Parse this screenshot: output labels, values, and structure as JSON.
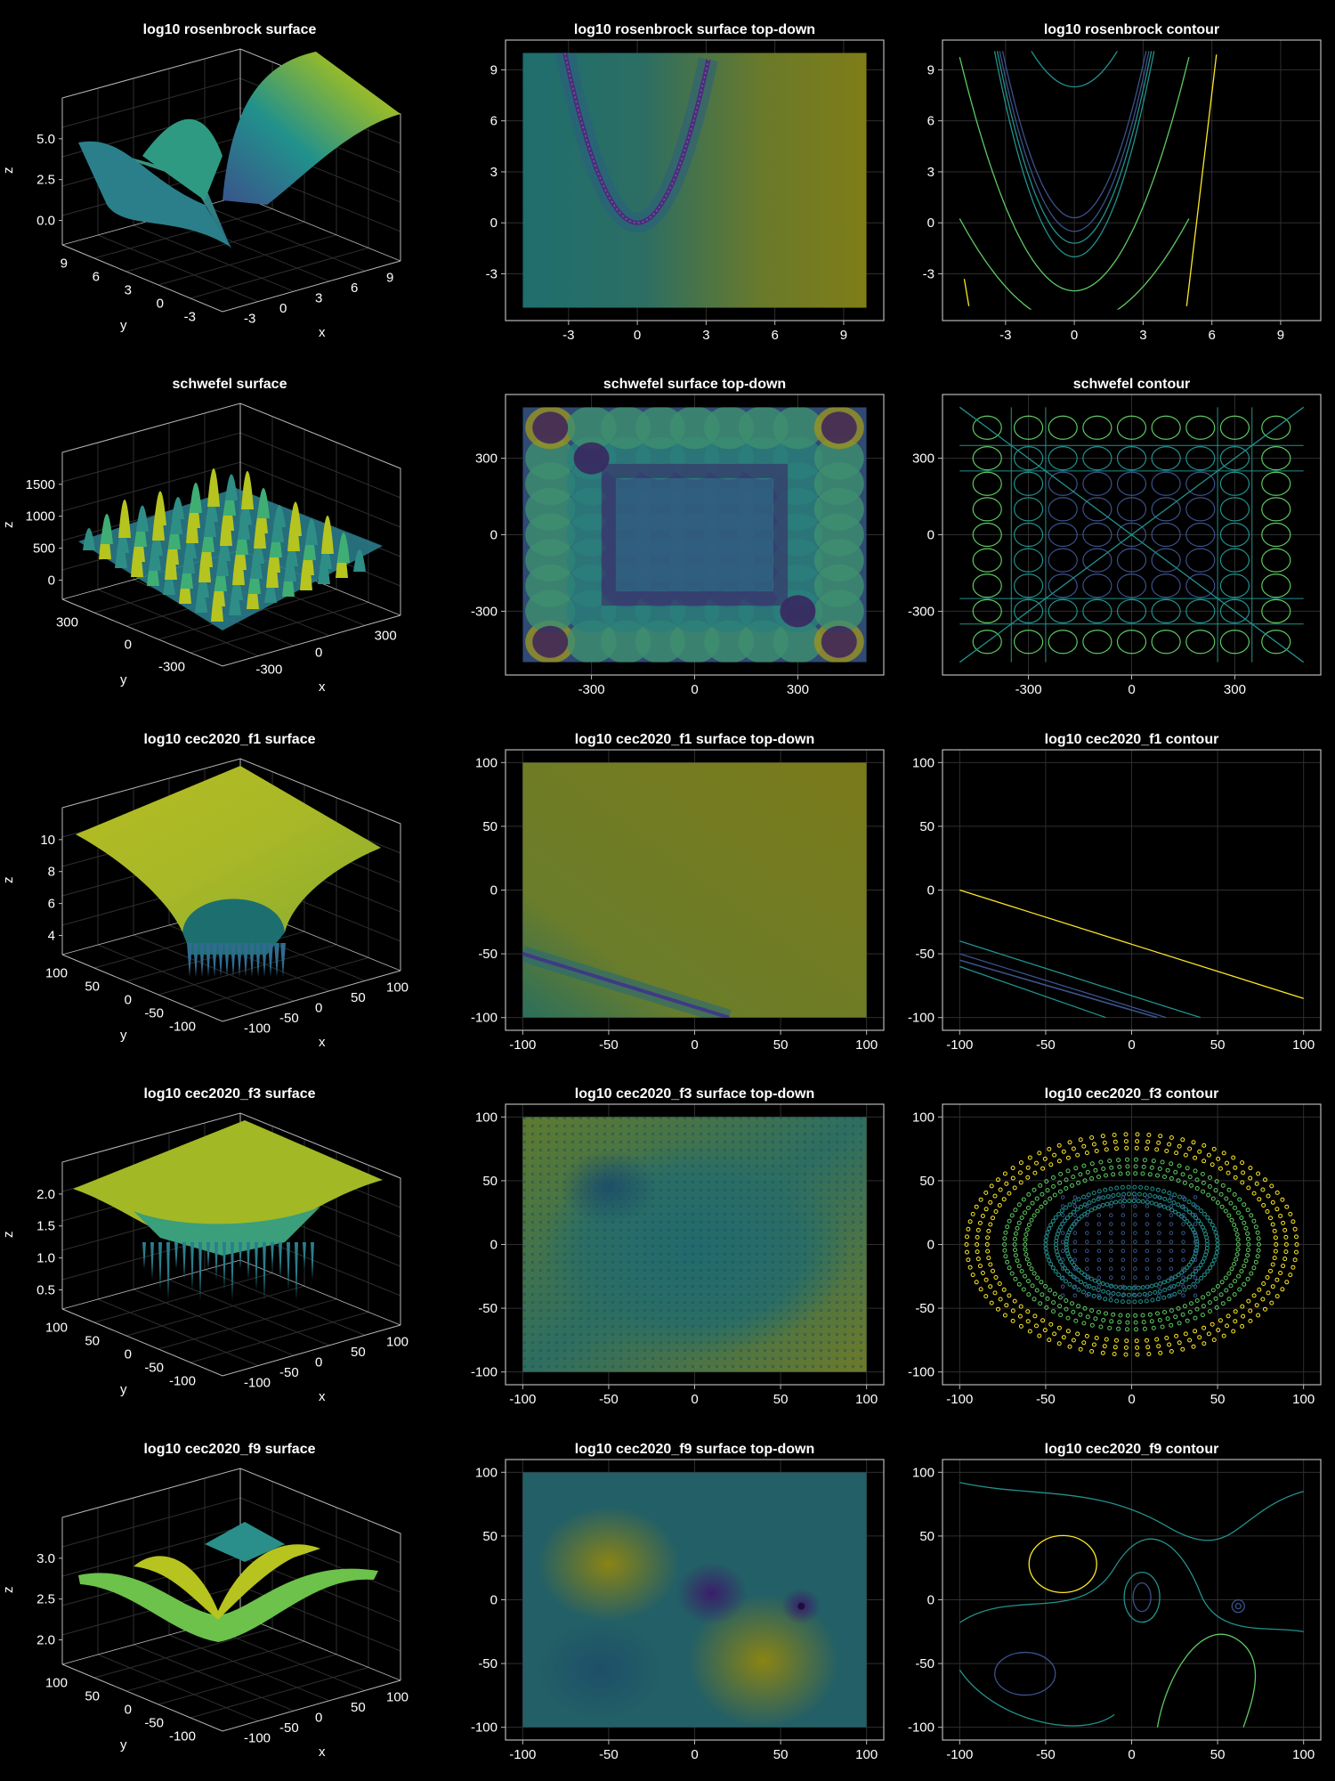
{
  "colors": {
    "background": "#000000",
    "frame": "#b8b8b8",
    "grid": "#2e2e2e",
    "text": "#ffffff",
    "colormap": [
      "#440154",
      "#3b528b",
      "#21918c",
      "#5ec962",
      "#fde725"
    ]
  },
  "chart_data": [
    {
      "type": "surface",
      "title": "log10 rosenbrock surface",
      "xlabel": "x",
      "ylabel": "y",
      "zlabel": "z",
      "xticks": [
        "-3",
        "0",
        "3",
        "6",
        "9"
      ],
      "yticks": [
        "-3",
        "0",
        "3",
        "6",
        "9"
      ],
      "zticks": [
        "0.0",
        "2.5",
        "5.0"
      ],
      "colormap": "viridis"
    },
    {
      "type": "heatmap",
      "title": "log10 rosenbrock surface top-down",
      "xlim": [
        -5,
        10
      ],
      "ylim": [
        -5,
        10
      ],
      "xticks": [
        "-3",
        "0",
        "3",
        "6",
        "9"
      ],
      "yticks": [
        "-3",
        "0",
        "3",
        "6",
        "9"
      ],
      "colormap": "viridis"
    },
    {
      "type": "contour",
      "title": "log10 rosenbrock contour",
      "xlim": [
        -5,
        10
      ],
      "ylim": [
        -5,
        10
      ],
      "xticks": [
        "-3",
        "0",
        "3",
        "6",
        "9"
      ],
      "yticks": [
        "-3",
        "0",
        "3",
        "6",
        "9"
      ],
      "colormap": "viridis"
    },
    {
      "type": "surface",
      "title": "schwefel surface",
      "xlabel": "x",
      "ylabel": "y",
      "zlabel": "z",
      "xticks": [
        "-300",
        "0",
        "300"
      ],
      "yticks": [
        "-300",
        "0",
        "300"
      ],
      "zticks": [
        "0",
        "500",
        "1000",
        "1500"
      ],
      "colormap": "viridis"
    },
    {
      "type": "heatmap",
      "title": "schwefel surface top-down",
      "xlim": [
        -500,
        500
      ],
      "ylim": [
        -500,
        500
      ],
      "xticks": [
        "-300",
        "0",
        "300"
      ],
      "yticks": [
        "-300",
        "0",
        "300"
      ],
      "colormap": "viridis"
    },
    {
      "type": "contour",
      "title": "schwefel contour",
      "xlim": [
        -500,
        500
      ],
      "ylim": [
        -500,
        500
      ],
      "xticks": [
        "-300",
        "0",
        "300"
      ],
      "yticks": [
        "-300",
        "0",
        "300"
      ],
      "colormap": "viridis"
    },
    {
      "type": "surface",
      "title": "log10 cec2020_f1 surface",
      "xlabel": "x",
      "ylabel": "y",
      "zlabel": "z",
      "xticks": [
        "-100",
        "-50",
        "0",
        "50",
        "100"
      ],
      "yticks": [
        "-100",
        "-50",
        "0",
        "50",
        "100"
      ],
      "zticks": [
        "4",
        "6",
        "8",
        "10"
      ],
      "colormap": "viridis"
    },
    {
      "type": "heatmap",
      "title": "log10 cec2020_f1 surface top-down",
      "xlim": [
        -100,
        100
      ],
      "ylim": [
        -100,
        100
      ],
      "xticks": [
        "-100",
        "-50",
        "0",
        "50",
        "100"
      ],
      "yticks": [
        "-100",
        "-50",
        "0",
        "50",
        "100"
      ],
      "colormap": "viridis"
    },
    {
      "type": "contour",
      "title": "log10 cec2020_f1 contour",
      "xlim": [
        -100,
        100
      ],
      "ylim": [
        -100,
        100
      ],
      "xticks": [
        "-100",
        "-50",
        "0",
        "50",
        "100"
      ],
      "yticks": [
        "-100",
        "-50",
        "0",
        "50",
        "100"
      ],
      "colormap": "viridis"
    },
    {
      "type": "surface",
      "title": "log10 cec2020_f3 surface",
      "xlabel": "x",
      "ylabel": "y",
      "zlabel": "z",
      "xticks": [
        "-100",
        "-50",
        "0",
        "50",
        "100"
      ],
      "yticks": [
        "-100",
        "-50",
        "0",
        "50",
        "100"
      ],
      "zticks": [
        "0.5",
        "1.0",
        "1.5",
        "2.0"
      ],
      "colormap": "viridis"
    },
    {
      "type": "heatmap",
      "title": "log10 cec2020_f3 surface top-down",
      "xlim": [
        -100,
        100
      ],
      "ylim": [
        -100,
        100
      ],
      "xticks": [
        "-100",
        "-50",
        "0",
        "50",
        "100"
      ],
      "yticks": [
        "-100",
        "-50",
        "0",
        "50",
        "100"
      ],
      "colormap": "viridis"
    },
    {
      "type": "contour",
      "title": "log10 cec2020_f3 contour",
      "xlim": [
        -100,
        100
      ],
      "ylim": [
        -100,
        100
      ],
      "xticks": [
        "-100",
        "-50",
        "0",
        "50",
        "100"
      ],
      "yticks": [
        "-100",
        "-50",
        "0",
        "50",
        "100"
      ],
      "colormap": "viridis"
    },
    {
      "type": "surface",
      "title": "log10 cec2020_f9 surface",
      "xlabel": "x",
      "ylabel": "y",
      "zlabel": "z",
      "xticks": [
        "-100",
        "-50",
        "0",
        "50",
        "100"
      ],
      "yticks": [
        "-100",
        "-50",
        "0",
        "50",
        "100"
      ],
      "zticks": [
        "2.0",
        "2.5",
        "3.0"
      ],
      "colormap": "viridis"
    },
    {
      "type": "heatmap",
      "title": "log10 cec2020_f9 surface top-down",
      "xlim": [
        -100,
        100
      ],
      "ylim": [
        -100,
        100
      ],
      "xticks": [
        "-100",
        "-50",
        "0",
        "50",
        "100"
      ],
      "yticks": [
        "-100",
        "-50",
        "0",
        "50",
        "100"
      ],
      "colormap": "viridis"
    },
    {
      "type": "contour",
      "title": "log10 cec2020_f9 contour",
      "xlim": [
        -100,
        100
      ],
      "ylim": [
        -100,
        100
      ],
      "xticks": [
        "-100",
        "-50",
        "0",
        "50",
        "100"
      ],
      "yticks": [
        "-100",
        "-50",
        "0",
        "50",
        "100"
      ],
      "colormap": "viridis"
    }
  ]
}
